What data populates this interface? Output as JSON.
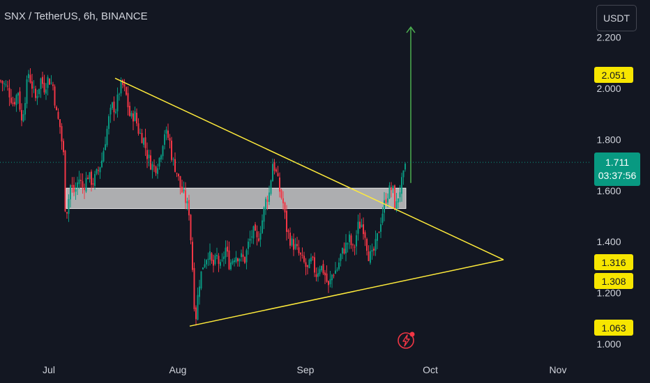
{
  "header": {
    "title": "SNX / TetherUS, 6h, BINANCE"
  },
  "toolbar": {
    "currency_label": "USDT"
  },
  "price_tags": {
    "target": "2.051",
    "last": "1.711",
    "countdown": "03:37:56",
    "level_a": "1.316",
    "level_b": "1.308",
    "level_c": "1.063"
  },
  "icons": {
    "flash": "lightning-bolt-icon"
  },
  "colors": {
    "background": "#131722",
    "up": "#089981",
    "down": "#f23645",
    "trendline": "#ffeb3b",
    "projection": "#4caf50",
    "zone": "#d9d9d9"
  },
  "chart_data": {
    "type": "candlestick",
    "title": "SNX / TetherUS, 6h, BINANCE",
    "x_ticks": [
      "Jul",
      "Aug",
      "Sep",
      "Oct",
      "Nov"
    ],
    "y_ticks": [
      "1.000",
      "1.200",
      "1.400",
      "1.600",
      "1.800",
      "2.000",
      "2.200"
    ],
    "ylim": [
      0.93,
      2.28
    ],
    "last_price": 1.711,
    "close_path": [
      [
        0,
        2.03
      ],
      [
        10,
        2.0
      ],
      [
        18,
        1.94
      ],
      [
        25,
        1.99
      ],
      [
        30,
        1.87
      ],
      [
        40,
        2.06
      ],
      [
        50,
        1.96
      ],
      [
        58,
        2.04
      ],
      [
        62,
        2.0
      ],
      [
        68,
        2.04
      ],
      [
        75,
        2.01
      ],
      [
        80,
        1.9
      ],
      [
        85,
        1.85
      ],
      [
        90,
        1.74
      ],
      [
        93,
        1.5
      ],
      [
        96,
        1.54
      ],
      [
        100,
        1.62
      ],
      [
        106,
        1.59
      ],
      [
        112,
        1.65
      ],
      [
        118,
        1.61
      ],
      [
        125,
        1.66
      ],
      [
        132,
        1.63
      ],
      [
        140,
        1.68
      ],
      [
        145,
        1.72
      ],
      [
        150,
        1.8
      ],
      [
        155,
        1.88
      ],
      [
        160,
        1.93
      ],
      [
        165,
        1.92
      ],
      [
        170,
        1.99
      ],
      [
        174,
        2.02
      ],
      [
        180,
        1.97
      ],
      [
        186,
        1.88
      ],
      [
        192,
        1.9
      ],
      [
        198,
        1.83
      ],
      [
        205,
        1.8
      ],
      [
        210,
        1.74
      ],
      [
        216,
        1.7
      ],
      [
        222,
        1.69
      ],
      [
        228,
        1.73
      ],
      [
        235,
        1.83
      ],
      [
        242,
        1.8
      ],
      [
        246,
        1.72
      ],
      [
        252,
        1.68
      ],
      [
        258,
        1.61
      ],
      [
        264,
        1.57
      ],
      [
        270,
        1.52
      ],
      [
        274,
        1.35
      ],
      [
        279,
        1.08
      ],
      [
        284,
        1.23
      ],
      [
        290,
        1.31
      ],
      [
        298,
        1.36
      ],
      [
        304,
        1.3
      ],
      [
        310,
        1.34
      ],
      [
        316,
        1.29
      ],
      [
        322,
        1.38
      ],
      [
        328,
        1.31
      ],
      [
        336,
        1.35
      ],
      [
        344,
        1.34
      ],
      [
        350,
        1.33
      ],
      [
        355,
        1.39
      ],
      [
        362,
        1.44
      ],
      [
        368,
        1.4
      ],
      [
        374,
        1.47
      ],
      [
        380,
        1.56
      ],
      [
        385,
        1.59
      ],
      [
        390,
        1.71
      ],
      [
        394,
        1.68
      ],
      [
        400,
        1.6
      ],
      [
        405,
        1.55
      ],
      [
        410,
        1.45
      ],
      [
        416,
        1.4
      ],
      [
        422,
        1.38
      ],
      [
        428,
        1.35
      ],
      [
        434,
        1.32
      ],
      [
        440,
        1.29
      ],
      [
        446,
        1.33
      ],
      [
        452,
        1.27
      ],
      [
        458,
        1.31
      ],
      [
        464,
        1.28
      ],
      [
        470,
        1.22
      ],
      [
        476,
        1.28
      ],
      [
        482,
        1.29
      ],
      [
        488,
        1.35
      ],
      [
        494,
        1.38
      ],
      [
        500,
        1.41
      ],
      [
        506,
        1.36
      ],
      [
        512,
        1.46
      ],
      [
        518,
        1.47
      ],
      [
        522,
        1.44
      ],
      [
        527,
        1.35
      ],
      [
        532,
        1.34
      ],
      [
        537,
        1.38
      ],
      [
        542,
        1.44
      ],
      [
        546,
        1.5
      ],
      [
        552,
        1.57
      ],
      [
        557,
        1.6
      ],
      [
        562,
        1.61
      ],
      [
        566,
        1.52
      ],
      [
        570,
        1.58
      ],
      [
        574,
        1.62
      ],
      [
        578,
        1.66
      ],
      [
        582,
        1.71
      ]
    ],
    "annotations": {
      "descending_trendline": [
        [
          165,
          2.04
        ],
        [
          722,
          1.33
        ]
      ],
      "ascending_trendline": [
        [
          272,
          1.07
        ],
        [
          722,
          1.33
        ]
      ],
      "support_zone": {
        "x": [
          95,
          582
        ],
        "y_top": 1.61,
        "y_bottom": 1.53
      },
      "projection_arrow": {
        "x": 589,
        "from": 1.63,
        "to": 2.24
      }
    }
  }
}
